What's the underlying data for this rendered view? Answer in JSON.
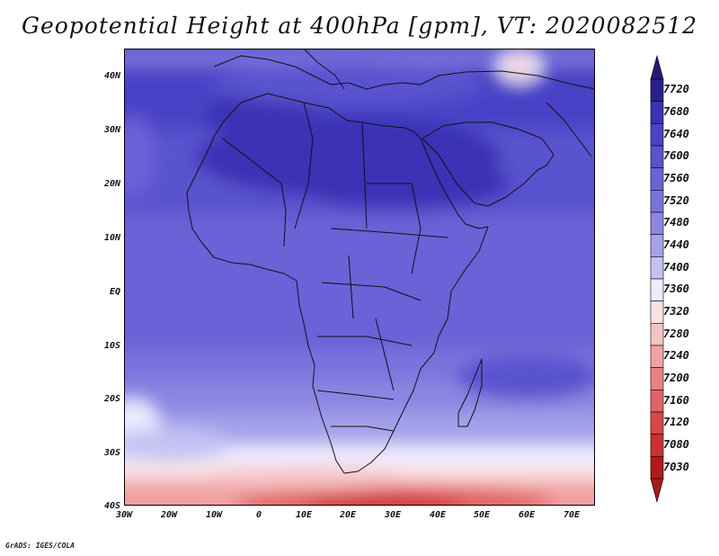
{
  "title": "Geopotential Height at 400hPa [gpm], VT: 2020082512",
  "credit": "GrADS: IGES/COLA",
  "lat_labels": [
    "40N",
    "30N",
    "20N",
    "10N",
    "EQ",
    "10S",
    "20S",
    "30S",
    "40S"
  ],
  "lon_labels": [
    "30W",
    "20W",
    "10W",
    "0",
    "10E",
    "20E",
    "30E",
    "40E",
    "50E",
    "60E",
    "70E"
  ],
  "colorbar": {
    "levels": [
      "7720",
      "7680",
      "7640",
      "7600",
      "7560",
      "7520",
      "7480",
      "7440",
      "7400",
      "7360",
      "7320",
      "7280",
      "7240",
      "7200",
      "7160",
      "7120",
      "7080",
      "7030"
    ],
    "colors": [
      "#2a1f8f",
      "#3a33b5",
      "#4a43c6",
      "#5a52cf",
      "#6a62d6",
      "#7a73dc",
      "#8c86e2",
      "#a5a1ea",
      "#c4c2f3",
      "#ecebff",
      "#fbe2e2",
      "#f6c3c3",
      "#f0a2a2",
      "#e88282",
      "#e06464",
      "#d84848",
      "#cc3030",
      "#b21a1a"
    ],
    "top_arrow": "#26197a",
    "bottom_arrow": "#a81a1a"
  }
}
